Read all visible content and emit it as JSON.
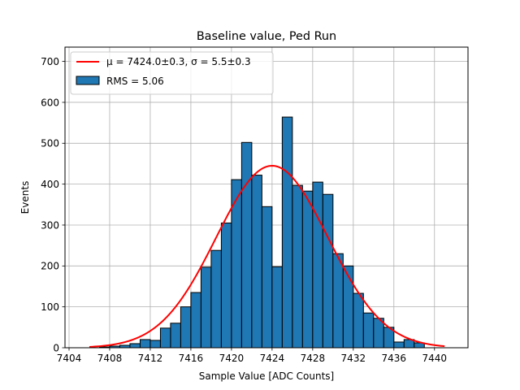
{
  "chart_data": {
    "type": "bar",
    "title": "Baseline value, Ped Run",
    "xlabel": "Sample Value [ADC Counts]",
    "ylabel": "Events",
    "xlim": [
      7403.6,
      7443.3
    ],
    "ylim": [
      0,
      735
    ],
    "grid": true,
    "legend_position": "top-left",
    "xticks": [
      7404,
      7408,
      7412,
      7416,
      7420,
      7424,
      7428,
      7432,
      7436,
      7440
    ],
    "yticks": [
      0,
      100,
      200,
      300,
      400,
      500,
      600,
      700
    ],
    "bin_width": 1,
    "bins": [
      {
        "left": 7407,
        "count": 2
      },
      {
        "left": 7408,
        "count": 4
      },
      {
        "left": 7409,
        "count": 6
      },
      {
        "left": 7410,
        "count": 10
      },
      {
        "left": 7411,
        "count": 20
      },
      {
        "left": 7412,
        "count": 18
      },
      {
        "left": 7413,
        "count": 48
      },
      {
        "left": 7414,
        "count": 60
      },
      {
        "left": 7415,
        "count": 100
      },
      {
        "left": 7416,
        "count": 135
      },
      {
        "left": 7417,
        "count": 197
      },
      {
        "left": 7418,
        "count": 238
      },
      {
        "left": 7419,
        "count": 305
      },
      {
        "left": 7420,
        "count": 411
      },
      {
        "left": 7421,
        "count": 502
      },
      {
        "left": 7422,
        "count": 422
      },
      {
        "left": 7423,
        "count": 345
      },
      {
        "left": 7424,
        "count": 198
      },
      {
        "left": 7425,
        "count": 564
      },
      {
        "left": 7426,
        "count": 397
      },
      {
        "left": 7427,
        "count": 383
      },
      {
        "left": 7428,
        "count": 405
      },
      {
        "left": 7429,
        "count": 375
      },
      {
        "left": 7430,
        "count": 230
      },
      {
        "left": 7431,
        "count": 200
      },
      {
        "left": 7432,
        "count": 133
      },
      {
        "left": 7433,
        "count": 85
      },
      {
        "left": 7434,
        "count": 72
      },
      {
        "left": 7435,
        "count": 50
      },
      {
        "left": 7436,
        "count": 14
      },
      {
        "left": 7437,
        "count": 20
      },
      {
        "left": 7438,
        "count": 12
      }
    ],
    "fit": {
      "type": "gaussian",
      "mu": 7424.0,
      "sigma": 5.5,
      "amplitude": 445,
      "x_range": [
        7406,
        7441
      ]
    },
    "series": [
      {
        "name": "μ = 7424.0±0.3, σ = 5.5±0.3",
        "kind": "line",
        "color": "#ff0000"
      },
      {
        "name": "RMS = 5.06",
        "kind": "bar",
        "color": "#1f77b4"
      }
    ]
  }
}
